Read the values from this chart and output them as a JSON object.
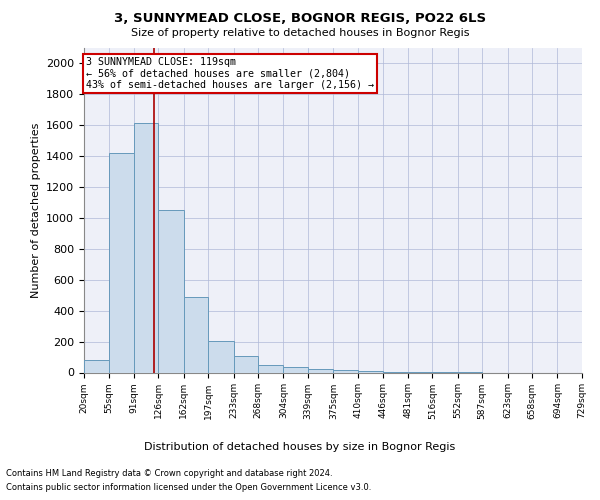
{
  "title": "3, SUNNYMEAD CLOSE, BOGNOR REGIS, PO22 6LS",
  "subtitle": "Size of property relative to detached houses in Bognor Regis",
  "xlabel": "Distribution of detached houses by size in Bognor Regis",
  "ylabel": "Number of detached properties",
  "footnote1": "Contains HM Land Registry data © Crown copyright and database right 2024.",
  "footnote2": "Contains public sector information licensed under the Open Government Licence v3.0.",
  "bar_color": "#ccdcec",
  "bar_edge_color": "#6699bb",
  "grid_color": "#b0b8d8",
  "annotation_box_color": "#cc0000",
  "vline_color": "#aa0000",
  "property_size": 119,
  "annotation_line1": "3 SUNNYMEAD CLOSE: 119sqm",
  "annotation_line2": "← 56% of detached houses are smaller (2,804)",
  "annotation_line3": "43% of semi-detached houses are larger (2,156) →",
  "bin_edges": [
    20,
    55,
    91,
    126,
    162,
    197,
    233,
    268,
    304,
    339,
    375,
    410,
    446,
    481,
    516,
    552,
    587,
    623,
    658,
    694,
    729
  ],
  "bar_heights": [
    80,
    1420,
    1610,
    1050,
    490,
    205,
    105,
    48,
    35,
    22,
    15,
    8,
    3,
    2,
    1,
    1,
    0,
    0,
    0,
    0
  ],
  "ylim": [
    0,
    2100
  ],
  "yticks": [
    0,
    200,
    400,
    600,
    800,
    1000,
    1200,
    1400,
    1600,
    1800,
    2000
  ],
  "background_color": "#ffffff",
  "plot_bg_color": "#eef0f8"
}
